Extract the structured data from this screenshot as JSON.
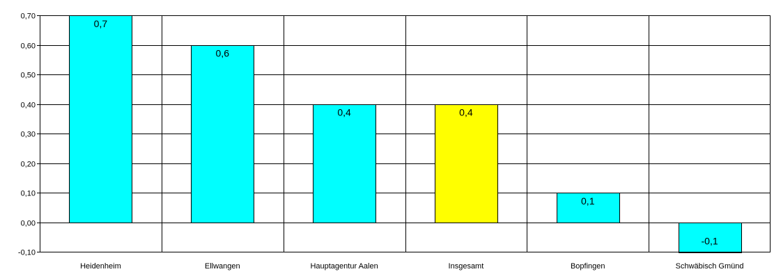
{
  "chart_data": {
    "type": "bar",
    "title": "",
    "xlabel": "",
    "ylabel": "",
    "categories": [
      "Heidenheim",
      "Ellwangen",
      "Hauptagentur Aalen",
      "Insgesamt",
      "Bopfingen",
      "Schwäbisch Gmünd"
    ],
    "values": [
      0.7,
      0.6,
      0.4,
      0.4,
      0.1,
      -0.1
    ],
    "data_labels": [
      "0,7",
      "0,6",
      "0,4",
      "0,4",
      "0,1",
      "-0,1"
    ],
    "ylim": [
      -0.1,
      0.7
    ],
    "yticks": [
      0.7,
      0.6,
      0.5,
      0.4,
      0.3,
      0.2,
      0.1,
      0.0,
      -0.1
    ],
    "ytick_labels": [
      "0,70",
      "0,60",
      "0,50",
      "0,40",
      "0,30",
      "0,20",
      "0,10",
      "0,00",
      "-0,10"
    ],
    "grid": true,
    "legend": "none",
    "colors": {
      "default": "#00ffff",
      "highlight": "#ffff00",
      "border": "#000000"
    },
    "highlight_index": 3
  }
}
